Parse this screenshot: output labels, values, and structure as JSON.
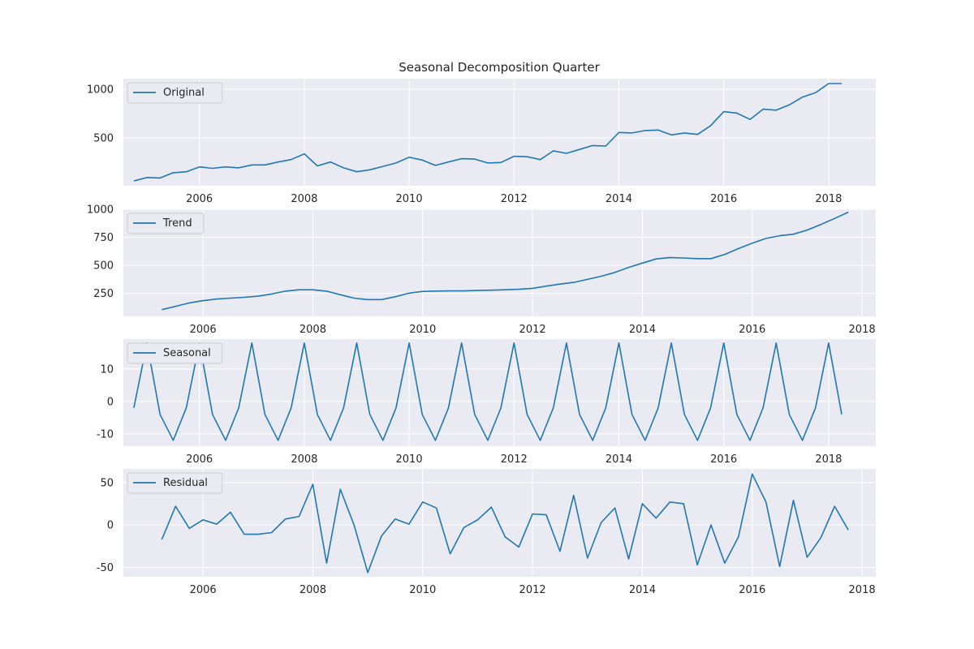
{
  "title": "Seasonal Decomposition Quarter",
  "colors": {
    "series": "#1f77b4",
    "panel_background": "#eaeaf2",
    "grid": "#ffffff"
  },
  "chart_data": [
    {
      "type": "line",
      "name": "original",
      "legend": "Original",
      "legend_position": "top-left",
      "grid": true,
      "x": [
        "2004-10-01",
        "2005-01-01",
        "2005-04-01",
        "2005-07-01",
        "2005-10-01",
        "2006-01-01",
        "2006-04-01",
        "2006-07-01",
        "2006-10-01",
        "2007-01-01",
        "2007-04-01",
        "2007-07-01",
        "2007-10-01",
        "2008-01-01",
        "2008-04-01",
        "2008-07-01",
        "2008-10-01",
        "2009-01-01",
        "2009-04-01",
        "2009-07-01",
        "2009-10-01",
        "2010-01-01",
        "2010-04-01",
        "2010-07-01",
        "2010-10-01",
        "2011-01-01",
        "2011-04-01",
        "2011-07-01",
        "2011-10-01",
        "2012-01-01",
        "2012-04-01",
        "2012-07-01",
        "2012-10-01",
        "2013-01-01",
        "2013-04-01",
        "2013-07-01",
        "2013-10-01",
        "2014-01-01",
        "2014-04-01",
        "2014-07-01",
        "2014-10-01",
        "2015-01-01",
        "2015-04-01",
        "2015-07-01",
        "2015-10-01",
        "2016-01-01",
        "2016-04-01",
        "2016-07-01",
        "2016-10-01",
        "2017-01-01",
        "2017-04-01",
        "2017-07-01",
        "2017-10-01",
        "2018-01-01",
        "2018-04-01"
      ],
      "y": [
        55,
        90,
        85,
        140,
        150,
        200,
        185,
        200,
        190,
        220,
        220,
        250,
        275,
        335,
        210,
        250,
        190,
        150,
        170,
        205,
        240,
        300,
        270,
        215,
        250,
        285,
        280,
        240,
        245,
        310,
        305,
        275,
        365,
        340,
        380,
        420,
        415,
        555,
        550,
        575,
        580,
        530,
        550,
        535,
        625,
        770,
        755,
        690,
        795,
        785,
        840,
        920,
        965,
        1060,
        1060
      ],
      "xticks": [
        "2006",
        "2008",
        "2010",
        "2012",
        "2014",
        "2016",
        "2018"
      ],
      "yticks": [
        "500",
        "1000"
      ],
      "ylim": [
        5,
        1110
      ]
    },
    {
      "type": "line",
      "name": "trend",
      "legend": "Trend",
      "legend_position": "top-left",
      "grid": true,
      "x": [
        "2005-04-01",
        "2005-07-01",
        "2005-10-01",
        "2006-01-01",
        "2006-04-01",
        "2006-07-01",
        "2006-10-01",
        "2007-01-01",
        "2007-04-01",
        "2007-07-01",
        "2007-10-01",
        "2008-01-01",
        "2008-04-01",
        "2008-07-01",
        "2008-10-01",
        "2009-01-01",
        "2009-04-01",
        "2009-07-01",
        "2009-10-01",
        "2010-01-01",
        "2010-04-01",
        "2010-07-01",
        "2010-10-01",
        "2011-01-01",
        "2011-04-01",
        "2011-07-01",
        "2011-10-01",
        "2012-01-01",
        "2012-04-01",
        "2012-07-01",
        "2012-10-01",
        "2013-01-01",
        "2013-04-01",
        "2013-07-01",
        "2013-10-01",
        "2014-01-01",
        "2014-04-01",
        "2014-07-01",
        "2014-10-01",
        "2015-01-01",
        "2015-04-01",
        "2015-07-01",
        "2015-10-01",
        "2016-01-01",
        "2016-04-01",
        "2016-07-01",
        "2016-10-01",
        "2017-01-01",
        "2017-04-01",
        "2017-07-01",
        "2017-10-01"
      ],
      "y": [
        105,
        135,
        165,
        185,
        200,
        208,
        215,
        225,
        245,
        270,
        282,
        282,
        270,
        238,
        208,
        195,
        195,
        220,
        252,
        268,
        271,
        272,
        272,
        276,
        279,
        282,
        287,
        295,
        315,
        333,
        348,
        375,
        403,
        437,
        482,
        520,
        557,
        570,
        566,
        560,
        560,
        598,
        650,
        698,
        740,
        764,
        778,
        815,
        865,
        918,
        975
      ],
      "xticks": [
        "2006",
        "2008",
        "2010",
        "2012",
        "2014",
        "2016",
        "2018"
      ],
      "yticks": [
        "250",
        "500",
        "750",
        "1000"
      ],
      "ylim": [
        45,
        1000
      ]
    },
    {
      "type": "line",
      "name": "seasonal",
      "legend": "Seasonal",
      "legend_position": "top-left",
      "grid": true,
      "x": [
        "2004-10-01",
        "2005-01-01",
        "2005-04-01",
        "2005-07-01",
        "2005-10-01",
        "2006-01-01",
        "2006-04-01",
        "2006-07-01",
        "2006-10-01",
        "2007-01-01",
        "2007-04-01",
        "2007-07-01",
        "2007-10-01",
        "2008-01-01",
        "2008-04-01",
        "2008-07-01",
        "2008-10-01",
        "2009-01-01",
        "2009-04-01",
        "2009-07-01",
        "2009-10-01",
        "2010-01-01",
        "2010-04-01",
        "2010-07-01",
        "2010-10-01",
        "2011-01-01",
        "2011-04-01",
        "2011-07-01",
        "2011-10-01",
        "2012-01-01",
        "2012-04-01",
        "2012-07-01",
        "2012-10-01",
        "2013-01-01",
        "2013-04-01",
        "2013-07-01",
        "2013-10-01",
        "2014-01-01",
        "2014-04-01",
        "2014-07-01",
        "2014-10-01",
        "2015-01-01",
        "2015-04-01",
        "2015-07-01",
        "2015-10-01",
        "2016-01-01",
        "2016-04-01",
        "2016-07-01",
        "2016-10-01",
        "2017-01-01",
        "2017-04-01",
        "2017-07-01",
        "2017-10-01",
        "2018-01-01",
        "2018-04-01"
      ],
      "y": [
        -2,
        18,
        -4,
        -12,
        -2,
        18,
        -4,
        -12,
        -2,
        18,
        -4,
        -12,
        -2,
        18,
        -4,
        -12,
        -2,
        18,
        -4,
        -12,
        -2,
        18,
        -4,
        -12,
        -2,
        18,
        -4,
        -12,
        -2,
        18,
        -4,
        -12,
        -2,
        18,
        -4,
        -12,
        -2,
        18,
        -4,
        -12,
        -2,
        18,
        -4,
        -12,
        -2,
        18,
        -4,
        -12,
        -2,
        18,
        -4,
        -12,
        -2,
        18,
        -4
      ],
      "xticks": [
        "2006",
        "2008",
        "2010",
        "2012",
        "2014",
        "2016",
        "2018"
      ],
      "yticks": [
        "-10",
        "0",
        "10"
      ],
      "ylim": [
        -13.8,
        19.2
      ]
    },
    {
      "type": "line",
      "name": "residual",
      "legend": "Residual",
      "legend_position": "top-left",
      "grid": true,
      "x": [
        "2005-04-01",
        "2005-07-01",
        "2005-10-01",
        "2006-01-01",
        "2006-04-01",
        "2006-07-01",
        "2006-10-01",
        "2007-01-01",
        "2007-04-01",
        "2007-07-01",
        "2007-10-01",
        "2008-01-01",
        "2008-04-01",
        "2008-07-01",
        "2008-10-01",
        "2009-01-01",
        "2009-04-01",
        "2009-07-01",
        "2009-10-01",
        "2010-01-01",
        "2010-04-01",
        "2010-07-01",
        "2010-10-01",
        "2011-01-01",
        "2011-04-01",
        "2011-07-01",
        "2011-10-01",
        "2012-01-01",
        "2012-04-01",
        "2012-07-01",
        "2012-10-01",
        "2013-01-01",
        "2013-04-01",
        "2013-07-01",
        "2013-10-01",
        "2014-01-01",
        "2014-04-01",
        "2014-07-01",
        "2014-10-01",
        "2015-01-01",
        "2015-04-01",
        "2015-07-01",
        "2015-10-01",
        "2016-01-01",
        "2016-04-01",
        "2016-07-01",
        "2016-10-01",
        "2017-01-01",
        "2017-04-01",
        "2017-07-01",
        "2017-10-01"
      ],
      "y": [
        -17,
        22,
        -4,
        6,
        1,
        15,
        -11,
        -11,
        -9,
        7,
        10,
        48,
        -45,
        42,
        0,
        -56,
        -13,
        7,
        1,
        27,
        20,
        -34,
        -3,
        6,
        21,
        -14,
        -26,
        13,
        12,
        -31,
        35,
        -39,
        3,
        20,
        -40,
        25,
        8,
        27,
        25,
        -47,
        0,
        -45,
        -14,
        60,
        27,
        -49,
        29,
        -38,
        -15,
        22,
        -6
      ],
      "xticks": [
        "2006",
        "2008",
        "2010",
        "2012",
        "2014",
        "2016",
        "2018"
      ],
      "yticks": [
        "-50",
        "0",
        "50"
      ],
      "ylim": [
        -61,
        66
      ]
    }
  ]
}
